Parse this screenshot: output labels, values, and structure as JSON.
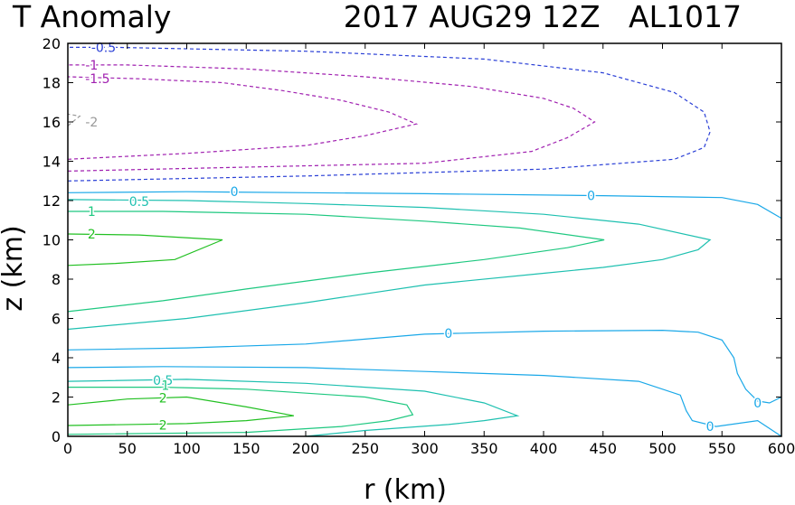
{
  "chart_data": {
    "type": "contour",
    "title_left": "T Anomaly",
    "title_right": "2017 AUG29 12Z   AL1017",
    "xlabel": "r (km)",
    "ylabel": "z (km)",
    "xlim": [
      0,
      600
    ],
    "ylim": [
      0,
      20
    ],
    "xticks": [
      0,
      50,
      100,
      150,
      200,
      250,
      300,
      350,
      400,
      450,
      500,
      550,
      600
    ],
    "yticks": [
      0,
      2,
      4,
      6,
      8,
      10,
      12,
      14,
      16,
      18,
      20
    ],
    "colors": {
      "neg_05": "#2a3fd6",
      "neg_1": "#a020b0",
      "neg_15": "#a020b0",
      "neg_2": "#999999",
      "zero": "#1aa8e8",
      "pos_05": "#1ec0b0",
      "pos_1": "#1ec880",
      "pos_2": "#22c022"
    },
    "contours": [
      {
        "level": "-0.5",
        "color_key": "neg_05",
        "dashed": true,
        "points": [
          [
            0,
            13
          ],
          [
            200,
            13.25
          ],
          [
            400,
            13.6
          ],
          [
            510,
            14.1
          ],
          [
            535,
            14.7
          ],
          [
            540,
            15.5
          ],
          [
            535,
            16.5
          ],
          [
            510,
            17.5
          ],
          [
            450,
            18.5
          ],
          [
            350,
            19.2
          ],
          [
            200,
            19.6
          ],
          [
            40,
            19.8
          ],
          [
            0,
            19.8
          ]
        ]
      },
      {
        "level": "-1",
        "color_key": "neg_1",
        "dashed": true,
        "points": [
          [
            0,
            13.5
          ],
          [
            150,
            13.7
          ],
          [
            300,
            13.9
          ],
          [
            390,
            14.5
          ],
          [
            420,
            15.2
          ],
          [
            443,
            16
          ],
          [
            425,
            16.7
          ],
          [
            400,
            17.2
          ],
          [
            340,
            17.8
          ],
          [
            250,
            18.3
          ],
          [
            150,
            18.7
          ],
          [
            50,
            18.9
          ],
          [
            0,
            18.9
          ]
        ]
      },
      {
        "level": "-1.5",
        "color_key": "neg_15",
        "dashed": true,
        "points": [
          [
            0,
            14.1
          ],
          [
            100,
            14.4
          ],
          [
            200,
            14.8
          ],
          [
            250,
            15.3
          ],
          [
            293,
            15.9
          ],
          [
            270,
            16.5
          ],
          [
            230,
            17.1
          ],
          [
            180,
            17.6
          ],
          [
            130,
            18
          ],
          [
            60,
            18.2
          ],
          [
            0,
            18.3
          ]
        ]
      },
      {
        "level": "-2",
        "color_key": "neg_2",
        "dashed": true,
        "points": [
          [
            0,
            15.8
          ],
          [
            10,
            16.3
          ],
          [
            0,
            16.4
          ]
        ]
      },
      {
        "level": "0",
        "color_key": "zero",
        "dashed": false,
        "points": [
          [
            0,
            12.4
          ],
          [
            100,
            12.45
          ],
          [
            200,
            12.4
          ],
          [
            300,
            12.35
          ],
          [
            450,
            12.25
          ],
          [
            550,
            12.15
          ],
          [
            580,
            11.8
          ],
          [
            600,
            11.1
          ]
        ]
      },
      {
        "level": "0",
        "color_key": "zero",
        "dashed": false,
        "points": [
          [
            0,
            4.4
          ],
          [
            100,
            4.5
          ],
          [
            200,
            4.7
          ],
          [
            300,
            5.2
          ],
          [
            400,
            5.35
          ],
          [
            500,
            5.4
          ],
          [
            530,
            5.3
          ],
          [
            550,
            4.9
          ],
          [
            560,
            4
          ],
          [
            563,
            3.2
          ],
          [
            570,
            2.4
          ],
          [
            580,
            1.8
          ],
          [
            590,
            1.7
          ],
          [
            600,
            2
          ]
        ]
      },
      {
        "level": "0",
        "color_key": "zero",
        "dashed": false,
        "points": [
          [
            0,
            3.5
          ],
          [
            80,
            3.55
          ],
          [
            200,
            3.5
          ],
          [
            300,
            3.3
          ],
          [
            400,
            3.1
          ],
          [
            480,
            2.8
          ],
          [
            515,
            2.1
          ],
          [
            520,
            1.3
          ],
          [
            525,
            0.8
          ],
          [
            545,
            0.5
          ],
          [
            580,
            0.8
          ],
          [
            600,
            0
          ]
        ]
      },
      {
        "level": "0.5",
        "color_key": "pos_05",
        "dashed": false,
        "points": [
          [
            0,
            12.05
          ],
          [
            100,
            12
          ],
          [
            200,
            11.85
          ],
          [
            300,
            11.65
          ],
          [
            400,
            11.3
          ],
          [
            480,
            10.8
          ],
          [
            540,
            10
          ],
          [
            530,
            9.5
          ],
          [
            500,
            9
          ],
          [
            450,
            8.6
          ],
          [
            400,
            8.3
          ],
          [
            300,
            7.7
          ],
          [
            200,
            6.8
          ],
          [
            100,
            6
          ],
          [
            0,
            5.45
          ]
        ]
      },
      {
        "level": "0.5",
        "color_key": "pos_05",
        "dashed": false,
        "points": [
          [
            0,
            2.8
          ],
          [
            100,
            2.9
          ],
          [
            200,
            2.7
          ],
          [
            300,
            2.3
          ],
          [
            350,
            1.7
          ],
          [
            378,
            1.05
          ],
          [
            350,
            0.8
          ],
          [
            320,
            0.6
          ],
          [
            250,
            0.3
          ],
          [
            200,
            0
          ]
        ]
      },
      {
        "level": "1",
        "color_key": "pos_1",
        "dashed": false,
        "points": [
          [
            0,
            11.45
          ],
          [
            80,
            11.45
          ],
          [
            200,
            11.3
          ],
          [
            300,
            10.95
          ],
          [
            380,
            10.6
          ],
          [
            451,
            10
          ],
          [
            420,
            9.6
          ],
          [
            350,
            9
          ],
          [
            250,
            8.3
          ],
          [
            150,
            7.5
          ],
          [
            80,
            6.9
          ],
          [
            0,
            6.35
          ]
        ]
      },
      {
        "level": "1",
        "color_key": "pos_1",
        "dashed": false,
        "points": [
          [
            0,
            2.5
          ],
          [
            80,
            2.5
          ],
          [
            150,
            2.4
          ],
          [
            250,
            2
          ],
          [
            285,
            1.6
          ],
          [
            290,
            1.1
          ],
          [
            270,
            0.8
          ],
          [
            230,
            0.5
          ],
          [
            150,
            0.2
          ],
          [
            0,
            0.1
          ]
        ]
      },
      {
        "level": "2",
        "color_key": "pos_2",
        "dashed": false,
        "points": [
          [
            0,
            10.3
          ],
          [
            60,
            10.25
          ],
          [
            130,
            10
          ],
          [
            90,
            9
          ],
          [
            40,
            8.8
          ],
          [
            0,
            8.7
          ]
        ]
      },
      {
        "level": "2",
        "color_key": "pos_2",
        "dashed": false,
        "points": [
          [
            0,
            1.6
          ],
          [
            50,
            1.9
          ],
          [
            100,
            2
          ],
          [
            150,
            1.5
          ],
          [
            190,
            1.05
          ],
          [
            150,
            0.8
          ],
          [
            100,
            0.65
          ],
          [
            0,
            0.55
          ]
        ]
      }
    ],
    "labels": [
      {
        "text": "-0.5",
        "x": 30,
        "y": 19.8,
        "color_key": "neg_05"
      },
      {
        "text": "-1",
        "x": 20,
        "y": 18.9,
        "color_key": "neg_1"
      },
      {
        "text": "-1.5",
        "x": 25,
        "y": 18.2,
        "color_key": "neg_15"
      },
      {
        "text": "-2",
        "x": 20,
        "y": 16.0,
        "color_key": "neg_2"
      },
      {
        "text": "0",
        "x": 140,
        "y": 12.45,
        "color_key": "zero"
      },
      {
        "text": "0",
        "x": 440,
        "y": 12.25,
        "color_key": "zero"
      },
      {
        "text": "0.5",
        "x": 60,
        "y": 11.95,
        "color_key": "pos_05"
      },
      {
        "text": "1",
        "x": 20,
        "y": 11.45,
        "color_key": "pos_1"
      },
      {
        "text": "2",
        "x": 20,
        "y": 10.3,
        "color_key": "pos_2"
      },
      {
        "text": "0",
        "x": 320,
        "y": 5.25,
        "color_key": "zero"
      },
      {
        "text": "0.5",
        "x": 80,
        "y": 2.85,
        "color_key": "pos_05"
      },
      {
        "text": "1",
        "x": 82,
        "y": 2.6,
        "color_key": "pos_1"
      },
      {
        "text": "2",
        "x": 80,
        "y": 1.95,
        "color_key": "pos_2"
      },
      {
        "text": "2",
        "x": 80,
        "y": 0.58,
        "color_key": "pos_2"
      },
      {
        "text": "0",
        "x": 580,
        "y": 1.7,
        "color_key": "zero"
      },
      {
        "text": "0",
        "x": 540,
        "y": 0.5,
        "color_key": "zero"
      }
    ]
  }
}
